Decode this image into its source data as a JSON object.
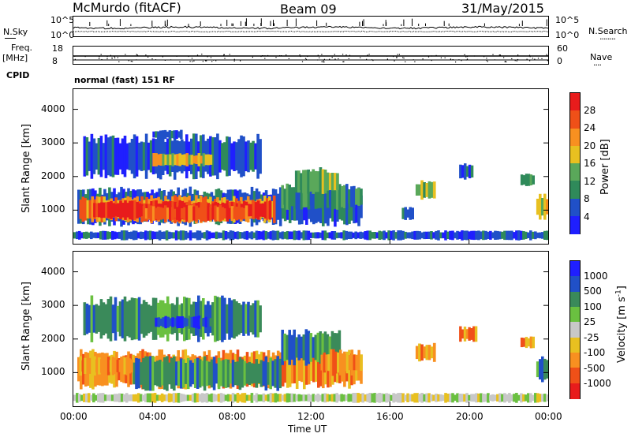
{
  "header": {
    "station": "McMurdo (fitACF)",
    "beam": "Beam 09",
    "date": "31/May/2015"
  },
  "noise_panel": {
    "left_label": "N.Sky",
    "left_top": "10^5",
    "left_bottom": "10^0",
    "right_label": "N.Search",
    "right_top": "10^5",
    "right_bottom": "10^0",
    "right_dots": "........"
  },
  "freq_panel": {
    "left_label_1": "Freq.",
    "left_label_2": "[MHz]",
    "left_top": "18",
    "left_bottom": "8",
    "right_label": "Nave",
    "right_top": "60",
    "right_bottom": "0",
    "right_dots": "....",
    "cpid_label": "CPID",
    "cpid_value": "normal (fast) 151 RF"
  },
  "chart_data": [
    {
      "type": "heatmap",
      "name": "power",
      "ylabel": "Slant Range [km]",
      "yticks": [
        "1000",
        "2000",
        "3000",
        "4000"
      ],
      "ylim": [
        0,
        4600
      ],
      "x_ticks": [
        "00:00",
        "04:00",
        "08:00",
        "12:00",
        "16:00",
        "20:00",
        "00:00"
      ],
      "colorbar": {
        "label": "Power [dB]",
        "ticks": [
          "4",
          "8",
          "12",
          "16",
          "20",
          "24",
          "28"
        ],
        "colors": [
          "#1f1fff",
          "#2050c8",
          "#2f8a5a",
          "#5aa85a",
          "#e8c020",
          "#f89020",
          "#f05018",
          "#e81c1c"
        ]
      },
      "blobs": [
        {
          "t0": 0.2,
          "t1": 14.6,
          "r0": 500,
          "r1": 1700,
          "level": 1
        },
        {
          "t0": 0.3,
          "t1": 10.2,
          "r0": 600,
          "r1": 1450,
          "level": 5
        },
        {
          "t0": 1.0,
          "t1": 10.0,
          "r0": 700,
          "r1": 1300,
          "level": 7
        },
        {
          "t0": 3.5,
          "t1": 8.8,
          "r0": 650,
          "r1": 1150,
          "level": 6
        },
        {
          "t0": 10.5,
          "t1": 14.6,
          "r0": 1000,
          "r1": 1800,
          "level": 2
        },
        {
          "t0": 11.2,
          "t1": 13.4,
          "r0": 1400,
          "r1": 2300,
          "level": 3
        },
        {
          "t0": 0.5,
          "t1": 9.5,
          "r0": 1900,
          "r1": 3300,
          "level": 1
        },
        {
          "t0": 4.0,
          "t1": 7.0,
          "r0": 2300,
          "r1": 2700,
          "level": 4
        },
        {
          "t0": 4.0,
          "t1": 5.5,
          "r0": 3100,
          "r1": 3400,
          "level": 1
        },
        {
          "t0": 17.3,
          "t1": 18.3,
          "r0": 1300,
          "r1": 1900,
          "level": 3
        },
        {
          "t0": 19.5,
          "t1": 20.2,
          "r0": 1900,
          "r1": 2400,
          "level": 1
        },
        {
          "t0": 22.6,
          "t1": 23.3,
          "r0": 1700,
          "r1": 2100,
          "level": 2
        },
        {
          "t0": 23.4,
          "t1": 24.0,
          "r0": 700,
          "r1": 1500,
          "level": 4
        },
        {
          "t0": 16.6,
          "t1": 17.2,
          "r0": 700,
          "r1": 1100,
          "level": 1
        },
        {
          "t0": 0.0,
          "t1": 24.0,
          "r0": 100,
          "r1": 400,
          "level": 1
        }
      ]
    },
    {
      "type": "heatmap",
      "name": "velocity",
      "ylabel": "Slant Range [km]",
      "yticks": [
        "1000",
        "2000",
        "3000",
        "4000"
      ],
      "ylim": [
        0,
        4600
      ],
      "x_ticks": [
        "00:00",
        "04:00",
        "08:00",
        "12:00",
        "16:00",
        "20:00",
        "00:00"
      ],
      "xlabel": "Time UT",
      "colorbar": {
        "label": "Velocity [m s^-1]",
        "ticks": [
          "-1000",
          "-500",
          "-100",
          "-25",
          "25",
          "100",
          "500",
          "1000"
        ],
        "colors": [
          "#e81c1c",
          "#f05018",
          "#f89020",
          "#e8c020",
          "#c8c8c8",
          "#6ac040",
          "#3a8a5a",
          "#2050c8",
          "#1f1fff"
        ]
      },
      "blobs": [
        {
          "t0": 0.2,
          "t1": 14.6,
          "r0": 500,
          "r1": 1700,
          "level": 2
        },
        {
          "t0": 3.0,
          "t1": 10.5,
          "r0": 450,
          "r1": 1500,
          "level": 6
        },
        {
          "t0": 0.3,
          "t1": 3.0,
          "r0": 900,
          "r1": 1500,
          "level": 2
        },
        {
          "t0": 10.5,
          "t1": 13.5,
          "r0": 1200,
          "r1": 2300,
          "level": 6
        },
        {
          "t0": 12.5,
          "t1": 14.6,
          "r0": 900,
          "r1": 1700,
          "level": 2
        },
        {
          "t0": 0.5,
          "t1": 9.5,
          "r0": 1900,
          "r1": 3300,
          "level": 6
        },
        {
          "t0": 4.0,
          "t1": 7.0,
          "r0": 2300,
          "r1": 2700,
          "level": 7
        },
        {
          "t0": 17.3,
          "t1": 18.3,
          "r0": 1300,
          "r1": 1900,
          "level": 2
        },
        {
          "t0": 19.5,
          "t1": 20.4,
          "r0": 1900,
          "r1": 2400,
          "level": 2
        },
        {
          "t0": 22.6,
          "t1": 23.3,
          "r0": 1700,
          "r1": 2100,
          "level": 2
        },
        {
          "t0": 23.4,
          "t1": 24.0,
          "r0": 700,
          "r1": 1500,
          "level": 6
        },
        {
          "t0": 0.0,
          "t1": 24.0,
          "r0": 100,
          "r1": 400,
          "level": 4
        }
      ]
    }
  ]
}
